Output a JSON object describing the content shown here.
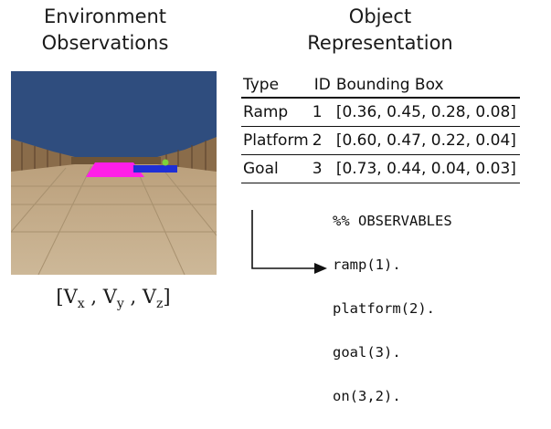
{
  "left_panel": {
    "heading": "Environment\nObservations",
    "vector_prefix": "[V",
    "vector_x": "x",
    "vector_sep1": " , V",
    "vector_y": "y",
    "vector_sep2": " , V",
    "vector_z": "z",
    "vector_suffix": "]"
  },
  "right_panel": {
    "heading": "Object\nRepresentation",
    "table": {
      "headers": [
        "Type",
        "ID",
        "Bounding Box"
      ],
      "rows": [
        [
          "Ramp",
          "1",
          "[0.36, 0.45, 0.28, 0.08]"
        ],
        [
          "Platform",
          "2",
          "[0.60, 0.47, 0.22, 0.04]"
        ],
        [
          "Goal",
          "3",
          "[0.73, 0.44, 0.04, 0.03]"
        ]
      ]
    },
    "code_lines": [
      "%% OBSERVABLES",
      "ramp(1).",
      "platform(2).",
      "goal(3).",
      "on(3,2)."
    ]
  },
  "colors": {
    "sky": "#2f4d7e",
    "floor": "#c9b28f",
    "wall": "#8a6c4a",
    "ramp": "#ff1fe8",
    "platform": "#1f2fd6",
    "goal": "#7fd23b"
  }
}
